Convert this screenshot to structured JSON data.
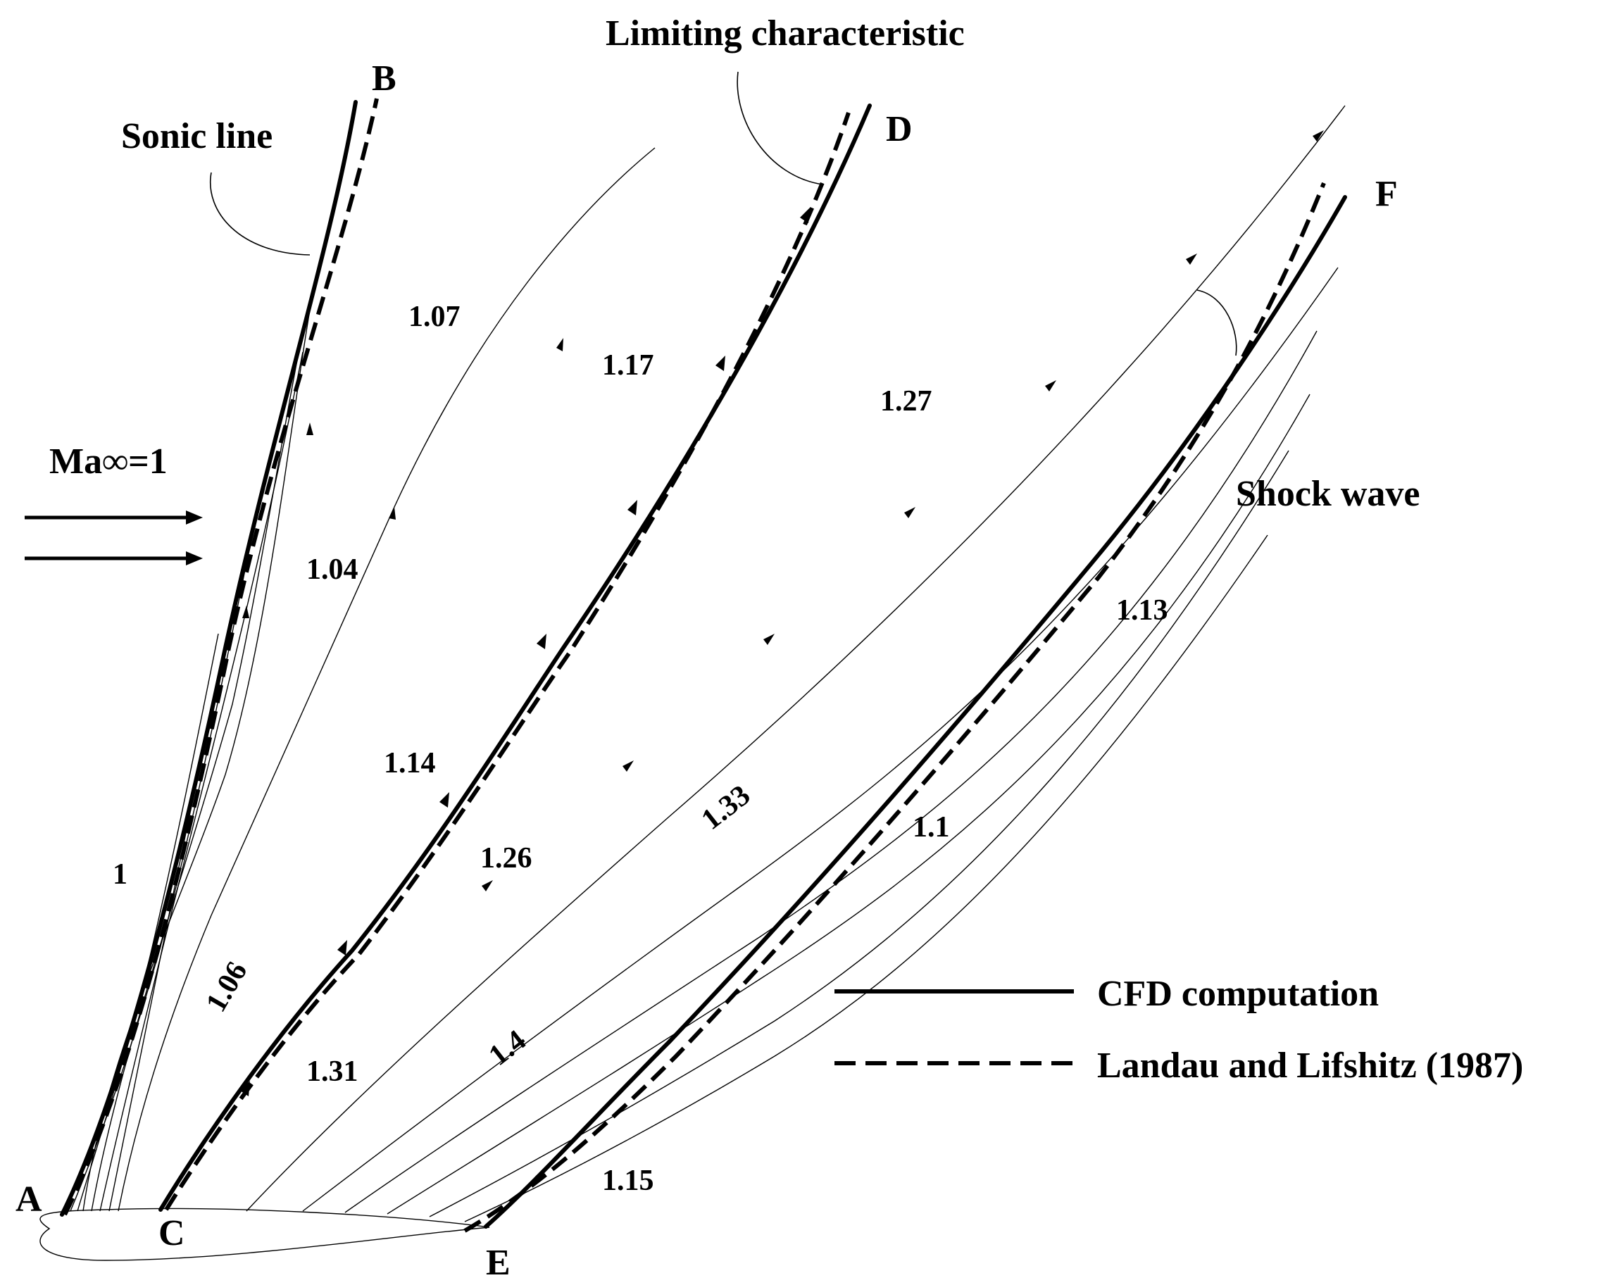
{
  "points": {
    "A": "A",
    "B": "B",
    "C": "C",
    "D": "D",
    "E": "E",
    "F": "F"
  },
  "annotations": {
    "sonic_line": "Sonic line",
    "limiting_characteristic": "Limiting characteristic",
    "shock_wave": "Shock wave",
    "freestream_mach": "Ma∞=1"
  },
  "mach_numbers": {
    "m_1": "1",
    "m_1_04": "1.04",
    "m_1_06": "1.06",
    "m_1_07": "1.07",
    "m_1_14": "1.14",
    "m_1_17": "1.17",
    "m_1_26": "1.26",
    "m_1_31": "1.31",
    "m_1_27": "1.27",
    "m_1_33": "1.33",
    "m_1_4": "1.4",
    "m_1_1": "1.1",
    "m_1_13": "1.13",
    "m_1_15": "1.15"
  },
  "legend": {
    "cfd": "CFD computation",
    "landau": "Landau and Lifshitz (1987)"
  }
}
